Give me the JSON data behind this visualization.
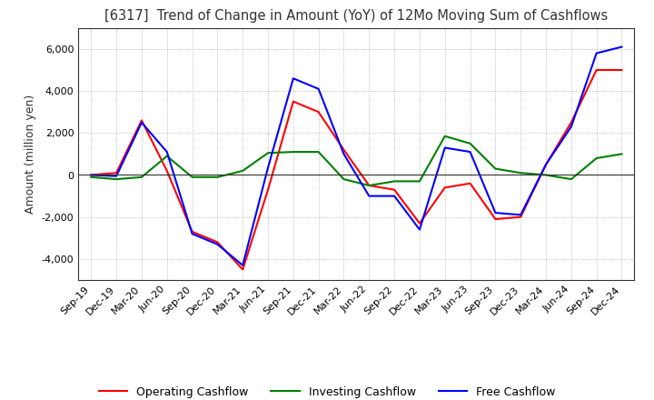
{
  "title": "[6317]  Trend of Change in Amount (YoY) of 12Mo Moving Sum of Cashflows",
  "ylabel": "Amount (million yen)",
  "ylim": [
    -5000,
    7000
  ],
  "yticks": [
    -4000,
    -2000,
    0,
    2000,
    4000,
    6000
  ],
  "x_labels": [
    "Sep-19",
    "Dec-19",
    "Mar-20",
    "Jun-20",
    "Sep-20",
    "Dec-20",
    "Mar-21",
    "Jun-21",
    "Sep-21",
    "Dec-21",
    "Mar-22",
    "Jun-22",
    "Sep-22",
    "Dec-22",
    "Mar-23",
    "Jun-23",
    "Sep-23",
    "Dec-23",
    "Mar-24",
    "Jun-24",
    "Sep-24",
    "Dec-24"
  ],
  "operating": [
    0,
    100,
    2600,
    200,
    -2700,
    -3200,
    -4500,
    -700,
    3500,
    3000,
    1200,
    -500,
    -700,
    -2300,
    -600,
    -400,
    -2100,
    -2000,
    500,
    2500,
    5000,
    5000
  ],
  "investing": [
    -100,
    -200,
    -100,
    900,
    -100,
    -100,
    200,
    1050,
    1100,
    1100,
    -200,
    -500,
    -300,
    -300,
    1850,
    1500,
    300,
    100,
    0,
    -200,
    800,
    1000
  ],
  "free": [
    0,
    -50,
    2500,
    1100,
    -2800,
    -3300,
    -4300,
    350,
    4600,
    4100,
    1000,
    -1000,
    -1000,
    -2600,
    1300,
    1100,
    -1800,
    -1900,
    500,
    2300,
    5800,
    6100
  ],
  "operating_color": "#ff0000",
  "investing_color": "#008000",
  "free_color": "#0000ff",
  "background_color": "#ffffff",
  "grid_color": "#aaaaaa"
}
